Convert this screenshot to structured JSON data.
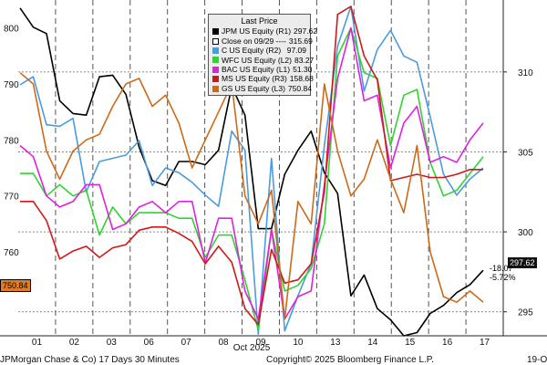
{
  "legend": {
    "title": "Last Price",
    "items": [
      {
        "name": "JPM US Equity",
        "axis": "(R1)",
        "value": "297.62",
        "color": "#000000",
        "swatch": "solid"
      },
      {
        "name": "Close on 09/29",
        "axis": "----",
        "value": "315.69",
        "color": "#000000",
        "swatch": "outline"
      },
      {
        "name": "C US Equity",
        "axis": "(R2)",
        "value": "97.09",
        "color": "#4a9be0",
        "swatch": "solid"
      },
      {
        "name": "WFC US Equity",
        "axis": "(L2)",
        "value": "83.27",
        "color": "#2fd42f",
        "swatch": "solid"
      },
      {
        "name": "BAC US Equity",
        "axis": "(L1)",
        "value": "51.30",
        "color": "#e020e0",
        "swatch": "solid"
      },
      {
        "name": "MS US Equity",
        "axis": "(R3)",
        "value": "158.68",
        "color": "#d01818",
        "swatch": "solid"
      },
      {
        "name": "GS US Equity",
        "axis": "(L3)",
        "value": "750.84",
        "color": "#cc6a1a",
        "swatch": "solid"
      }
    ]
  },
  "footer": {
    "left": "JPMorgan Chase & Co) 17 Days 30 Minutes",
    "center": "Copyright© 2025 Bloomberg Finance L.P.",
    "right": "19-Oc"
  },
  "tags": {
    "right_price": "297.62",
    "left_price": "750.84",
    "change_abs": "-18.07",
    "change_pct": "-5.72%"
  },
  "chart_data": {
    "type": "line",
    "title": "",
    "xlabel": "Oct 2025",
    "x_ticks": [
      "01",
      "02",
      "03",
      "06",
      "07",
      "08",
      "09",
      "10",
      "13",
      "14",
      "15",
      "16",
      "17"
    ],
    "left_axis": {
      "label": "GS US Equity (L3)",
      "ylim": [
        745,
        805
      ],
      "ticks": [
        760,
        770,
        780,
        790,
        800
      ]
    },
    "right_axis": {
      "label": "JPM US Equity (R1)",
      "ylim": [
        293.5,
        314.5
      ],
      "ticks": [
        295,
        300,
        305,
        310
      ]
    },
    "reference_line": {
      "name": "Close on 09/29",
      "value": 315.69
    },
    "series": [
      {
        "name": "JPM",
        "axis": "right",
        "color": "#000000",
        "values": [
          314.0,
          312.8,
          312.4,
          308.2,
          307.4,
          307.3,
          309.7,
          309.8,
          308.6,
          305.3,
          303.2,
          302.9,
          304.4,
          304.4,
          304.2,
          305.1,
          309.1,
          307.3,
          300.2,
          300.2,
          303.6,
          305.1,
          306.3,
          303.7,
          302.4,
          296.0,
          297.3,
          295.2,
          294.5,
          293.5,
          293.7,
          294.9,
          295.4,
          296.2,
          296.7,
          297.6
        ]
      },
      {
        "name": "C",
        "axis": "right",
        "color": "#4a9be0",
        "values": [
          309.2,
          309.7,
          306.7,
          306.6,
          307.1,
          302.5,
          304.4,
          304.6,
          304.8,
          305.7,
          302.9,
          304.0,
          303.7,
          303.1,
          302.3,
          301.6,
          306.3,
          305.1,
          293.6,
          304.6,
          293.8,
          296.0,
          298.0,
          305.4,
          311.6,
          314.1,
          308.8,
          311.4,
          312.6,
          311.0,
          310.6,
          307.2,
          303.6,
          302.3,
          303.3,
          304.0
        ]
      },
      {
        "name": "WFC",
        "axis": "left",
        "color": "#2fd42f",
        "values": [
          774,
          774,
          770,
          772,
          770,
          771,
          763,
          768,
          765,
          767,
          767,
          767,
          766,
          766,
          759,
          763,
          763,
          755,
          746,
          764,
          753,
          754,
          757,
          765,
          795,
          800,
          792,
          791,
          779,
          788,
          789,
          776,
          770,
          771,
          774,
          777
        ]
      },
      {
        "name": "BAC",
        "axis": "left",
        "color": "#e020e0",
        "values": [
          779,
          777,
          770,
          768,
          769,
          772,
          772,
          764,
          765,
          768,
          769,
          767,
          769,
          769,
          758,
          766,
          766,
          753,
          748,
          764,
          748,
          752,
          753,
          772,
          791,
          800,
          787,
          788,
          775,
          783,
          786,
          776,
          777,
          776,
          780,
          783
        ]
      },
      {
        "name": "MS",
        "axis": "right",
        "color": "#d01818",
        "values": [
          301.9,
          301.9,
          300.7,
          298.3,
          298.8,
          299.1,
          298.4,
          299.0,
          299.2,
          300.1,
          300.3,
          300.3,
          299.9,
          299.4,
          298.0,
          299.1,
          298.1,
          295.2,
          294.2,
          298.9,
          296.8,
          297.0,
          298.0,
          302.5,
          313.6,
          314.1,
          311.0,
          309.5,
          303.2,
          303.4,
          303.6,
          303.4,
          303.4,
          303.6,
          303.9,
          303.9
        ]
      },
      {
        "name": "GS",
        "axis": "left",
        "color": "#cc6a1a",
        "values": [
          792,
          790,
          778,
          773,
          778,
          780,
          781,
          786,
          790,
          791,
          786,
          788,
          783,
          775,
          780,
          785,
          790,
          770,
          765,
          771,
          748,
          769,
          765,
          790,
          778,
          770,
          773,
          780,
          773,
          767,
          779,
          760,
          752,
          751,
          753,
          751
        ]
      }
    ]
  }
}
